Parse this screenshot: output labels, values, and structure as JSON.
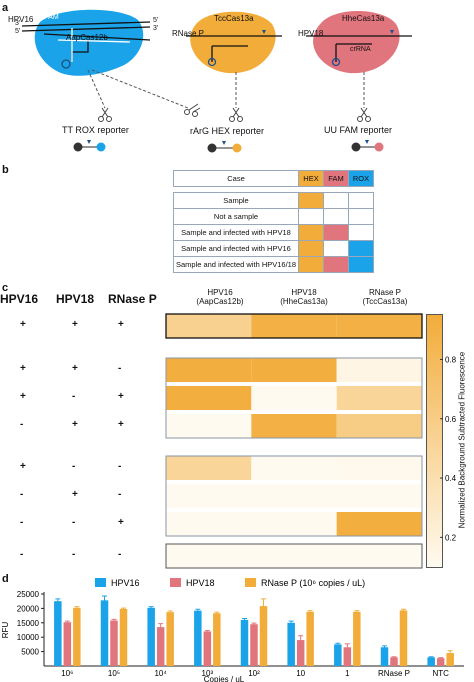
{
  "panel_labels": {
    "a": "a",
    "b": "b",
    "c": "c",
    "d": "d"
  },
  "panel_a": {
    "complexes": [
      {
        "target": "HPV16",
        "enzyme": "AapCas12b",
        "extra": "PAM",
        "color": "#1aa3e8",
        "reporter": "TT ROX reporter",
        "reporter_color": "#1aa3e8"
      },
      {
        "target": "RNase P",
        "enzyme": "TccCas13a",
        "extra": "",
        "color": "#f2ac3a",
        "reporter": "rArG HEX reporter",
        "reporter_color": "#f2ac3a"
      },
      {
        "target": "HPV18",
        "enzyme": "HheCas13a",
        "extra": "crRNA",
        "color": "#e0757d",
        "reporter": "UU FAM reporter",
        "reporter_color": "#e0757d"
      }
    ],
    "strand_labels": {
      "p3": "3'",
      "p5": "5'"
    }
  },
  "panel_b": {
    "header": {
      "case": "Case",
      "channels": [
        "HEX",
        "FAM",
        "ROX"
      ]
    },
    "channel_colors": {
      "HEX": "#f2ac3a",
      "FAM": "#e0757d",
      "ROX": "#1aa3e8"
    },
    "rows": [
      {
        "case": "Sample",
        "on": [
          true,
          false,
          false
        ]
      },
      {
        "case": "Not a sample",
        "on": [
          false,
          false,
          false
        ]
      },
      {
        "case": "Sample and infected with HPV18",
        "on": [
          true,
          true,
          false
        ]
      },
      {
        "case": "Sample and infected with HPV16",
        "on": [
          true,
          false,
          true
        ]
      },
      {
        "case": "Sample and infected with HPV16/18",
        "on": [
          true,
          true,
          true
        ]
      }
    ]
  },
  "panel_c": {
    "row_headers": [
      "HPV16",
      "HPV18",
      "RNase P"
    ],
    "col_headers": [
      {
        "line1": "HPV16",
        "line2": "(AapCas12b)"
      },
      {
        "line1": "HPV18",
        "line2": "(HheCas13a)"
      },
      {
        "line1": "RNase P",
        "line2": "(TccCas13a)"
      }
    ],
    "colorbar_label": "Normalized Background Subtracted Fluorescence",
    "colorbar_ticks": [
      "0.8",
      "0.6",
      "0.4",
      "0.2"
    ],
    "colorbar_tick_values": [
      0.8,
      0.6,
      0.4,
      0.2
    ],
    "colorbar_range": [
      0.1,
      0.95
    ],
    "conditions": [
      {
        "signs": [
          "+",
          "+",
          "+"
        ],
        "values": [
          0.55,
          0.9,
          0.9
        ]
      },
      {
        "signs": [
          "+",
          "+",
          "-"
        ],
        "values": [
          0.92,
          0.92,
          0.15
        ]
      },
      {
        "signs": [
          "+",
          "-",
          "+"
        ],
        "values": [
          0.92,
          0.1,
          0.5
        ]
      },
      {
        "signs": [
          "-",
          "+",
          "+"
        ],
        "values": [
          0.1,
          0.9,
          0.6
        ]
      },
      {
        "signs": [
          "+",
          "-",
          "-"
        ],
        "values": [
          0.5,
          0.1,
          0.12
        ]
      },
      {
        "signs": [
          "-",
          "+",
          "-"
        ],
        "values": [
          0.1,
          0.1,
          0.1
        ]
      },
      {
        "signs": [
          "-",
          "-",
          "+"
        ],
        "values": [
          0.1,
          0.1,
          0.92
        ]
      },
      {
        "signs": [
          "-",
          "-",
          "-"
        ],
        "values": [
          0.1,
          0.1,
          0.1
        ]
      }
    ]
  },
  "chart_data": {
    "type": "bar",
    "ylabel": "RFU",
    "xlabel": "Copies / uL",
    "ylim": [
      0,
      25000
    ],
    "yticks": [
      "25000",
      "20000",
      "15000",
      "10000",
      "5000"
    ],
    "ytick_values": [
      25000,
      20000,
      15000,
      10000,
      5000
    ],
    "categories": [
      "10⁶",
      "10⁵",
      "10⁴",
      "10³",
      "10²",
      "10",
      "1",
      "RNase P",
      "NTC"
    ],
    "series": [
      {
        "name": "HPV16",
        "color": "#1aa3e8",
        "values": [
          22500,
          22800,
          20200,
          19200,
          16000,
          15000,
          7500,
          6500,
          3000
        ],
        "errors": [
          800,
          1500,
          400,
          500,
          500,
          600,
          400,
          500,
          200
        ]
      },
      {
        "name": "HPV18",
        "color": "#e0757d",
        "values": [
          15200,
          15800,
          13500,
          12000,
          14500,
          9000,
          6500,
          3000,
          2700
        ],
        "errors": [
          400,
          400,
          1200,
          300,
          400,
          1500,
          1200,
          200,
          200
        ]
      },
      {
        "name": "RNase P (10⁶ copies / uL)",
        "color": "#f2ac3a",
        "values": [
          20200,
          19800,
          18700,
          18300,
          20800,
          18800,
          18800,
          19300,
          4500
        ],
        "errors": [
          400,
          300,
          400,
          400,
          2500,
          400,
          400,
          400,
          800
        ]
      }
    ],
    "legend": "top"
  }
}
